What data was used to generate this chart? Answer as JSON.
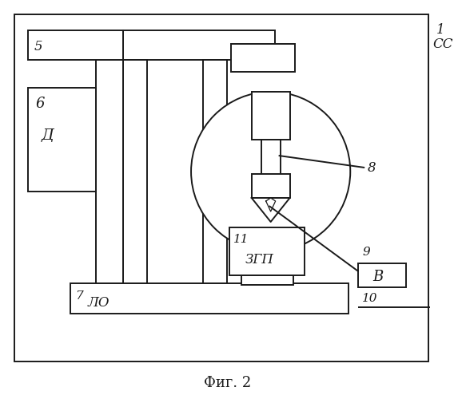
{
  "bg_color": "#ffffff",
  "fig_caption": "Фиг. 2",
  "label_1": "1",
  "label_cc": "СС",
  "label_5": "5",
  "label_6": "6",
  "label_d": "Д",
  "label_7": "7",
  "label_lo": "ЛО",
  "label_8": "8",
  "label_9": "9",
  "label_v": "В",
  "label_10": "10",
  "label_11": "11",
  "label_zgp": "ЗГП",
  "line_color": "#1a1a1a",
  "line_width": 1.4,
  "fill_white": "#ffffff"
}
